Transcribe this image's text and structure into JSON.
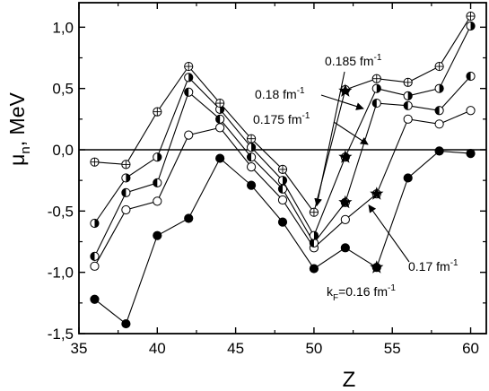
{
  "chart_data": {
    "type": "line",
    "xlabel": "Z",
    "ylabel": "μ",
    "ylabel_sub": "n",
    "ylabel_unit": ", MeV",
    "xlim": [
      35,
      61
    ],
    "ylim": [
      -1.5,
      1.2
    ],
    "xticks": [
      35,
      40,
      45,
      50,
      55,
      60
    ],
    "xtick_labels": [
      "35",
      "40",
      "45",
      "50",
      "55",
      "60"
    ],
    "yticks": [
      -1.5,
      -1.0,
      -0.5,
      0.0,
      0.5,
      1.0
    ],
    "ytick_labels": [
      "-1,5",
      "-1,0",
      "-0,5",
      "0,0",
      "0,5",
      "1,0"
    ],
    "reference_line_y": 0,
    "series": [
      {
        "marker": "filled-circle",
        "x": [
          36,
          38,
          40,
          42,
          44,
          46,
          48,
          50,
          52,
          54,
          56,
          58,
          60
        ],
        "y": [
          -1.22,
          -1.42,
          -0.7,
          -0.56,
          -0.07,
          -0.29,
          -0.59,
          -0.97,
          -0.8,
          -0.96,
          -0.23,
          -0.01,
          -0.03
        ]
      },
      {
        "marker": "open-circle",
        "x": [
          36,
          38,
          40,
          42,
          44,
          46,
          48,
          50,
          52,
          54,
          56,
          58,
          60
        ],
        "y": [
          -0.95,
          -0.49,
          -0.42,
          0.12,
          0.18,
          -0.14,
          -0.41,
          -0.8,
          -0.57,
          -0.36,
          0.25,
          0.21,
          0.32
        ]
      },
      {
        "marker": "half-left",
        "x": [
          36,
          38,
          40,
          42,
          44,
          46,
          48,
          50,
          52,
          54,
          56,
          58,
          60
        ],
        "y": [
          -0.87,
          -0.35,
          -0.27,
          0.47,
          0.25,
          -0.06,
          -0.32,
          -0.76,
          -0.43,
          0.38,
          0.36,
          0.32,
          0.6
        ]
      },
      {
        "marker": "half-right",
        "x": [
          36,
          38,
          40,
          42,
          44,
          46,
          48,
          50,
          52,
          54,
          56,
          58,
          60
        ],
        "y": [
          -0.6,
          -0.23,
          -0.06,
          0.59,
          0.33,
          0.02,
          -0.25,
          -0.7,
          -0.06,
          0.5,
          0.44,
          0.5,
          1.01
        ]
      },
      {
        "marker": "crossed-circle",
        "x": [
          36,
          38,
          40,
          42,
          44,
          46,
          48,
          50,
          52,
          54,
          56,
          58,
          60
        ],
        "y": [
          -0.1,
          -0.12,
          0.31,
          0.68,
          0.38,
          0.09,
          -0.16,
          -0.51,
          0.49,
          0.58,
          0.55,
          0.68,
          1.09
        ]
      }
    ],
    "stars": [
      {
        "x": 52,
        "y": 0.48
      },
      {
        "x": 52,
        "y": -0.06
      },
      {
        "x": 52,
        "y": -0.43
      },
      {
        "x": 54,
        "y": -0.36
      },
      {
        "x": 54,
        "y": -0.96
      }
    ],
    "annotations": [
      {
        "text": "0.185 fm",
        "sup": "-1",
        "sub": ""
      },
      {
        "text": "0.18 fm",
        "sup": "-1",
        "sub": ""
      },
      {
        "text": "0.175 fm",
        "sup": "-1",
        "sub": ""
      },
      {
        "text": "0.17 fm",
        "sup": "-1",
        "sub": ""
      },
      {
        "text": "k",
        "sub": "F",
        "text2": "=0.16 fm",
        "sup": "-1"
      }
    ]
  }
}
